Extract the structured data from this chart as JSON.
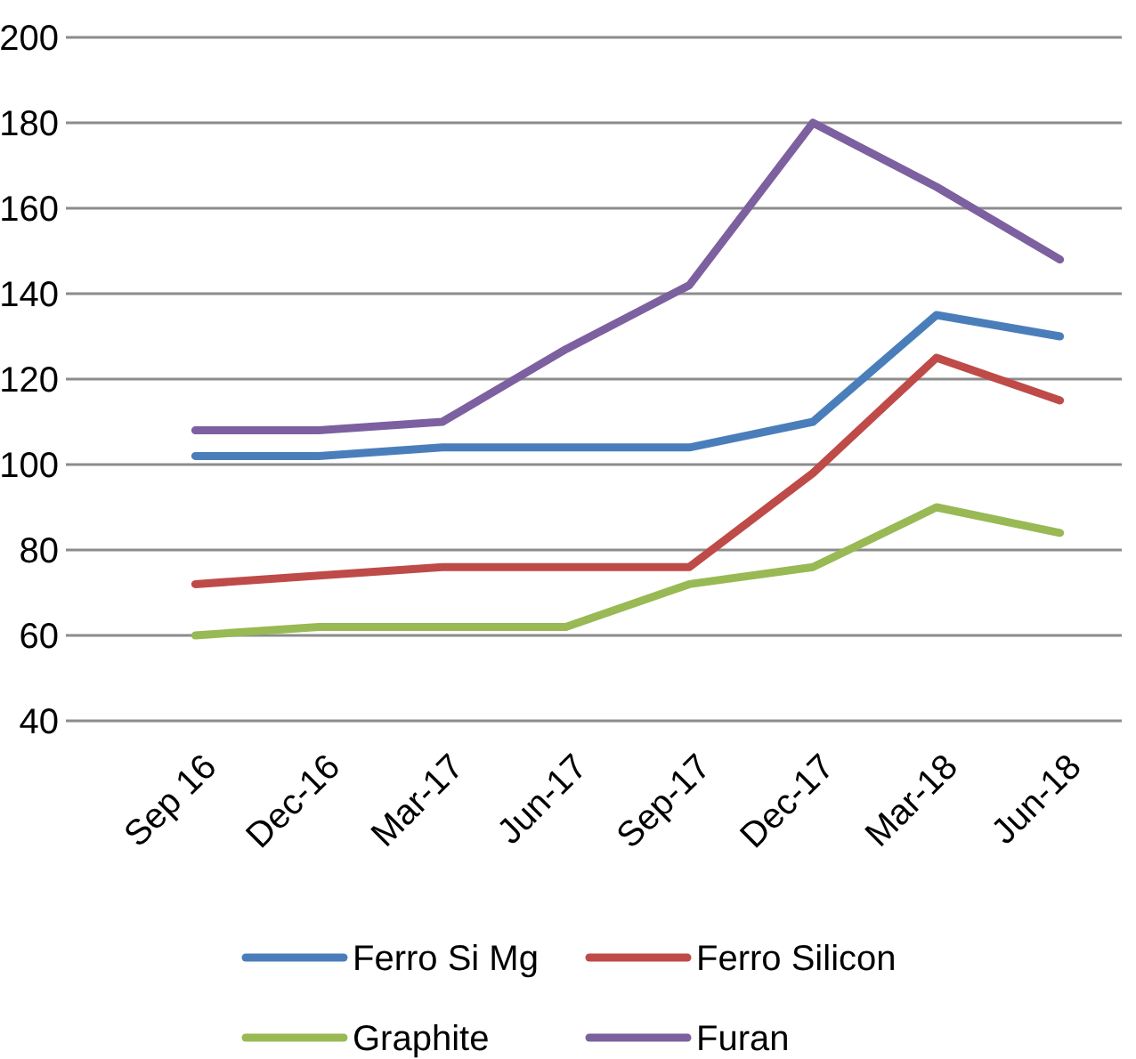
{
  "chart_data": {
    "type": "line",
    "categories": [
      "Sep 16",
      "Dec-16",
      "Mar-17",
      "Jun-17",
      "Sep-17",
      "Dec-17",
      "Mar-18",
      "Jun-18"
    ],
    "series": [
      {
        "name": "Ferro Si Mg",
        "color": "#4a7ebb",
        "values": [
          102,
          102,
          104,
          104,
          104,
          110,
          135,
          130
        ]
      },
      {
        "name": "Ferro Silicon",
        "color": "#be4b48",
        "values": [
          72,
          74,
          76,
          76,
          76,
          98,
          125,
          115
        ]
      },
      {
        "name": "Graphite",
        "color": "#98b954",
        "values": [
          60,
          62,
          62,
          62,
          72,
          76,
          90,
          84
        ]
      },
      {
        "name": "Furan",
        "color": "#7d60a0",
        "values": [
          108,
          108,
          110,
          127,
          142,
          180,
          165,
          148
        ]
      }
    ],
    "ylim": [
      40,
      200
    ],
    "yticks": [
      40,
      60,
      80,
      100,
      120,
      140,
      160,
      180,
      200
    ],
    "grid": "y",
    "legend": "bottom",
    "marker": "none",
    "line_style": "solid"
  }
}
